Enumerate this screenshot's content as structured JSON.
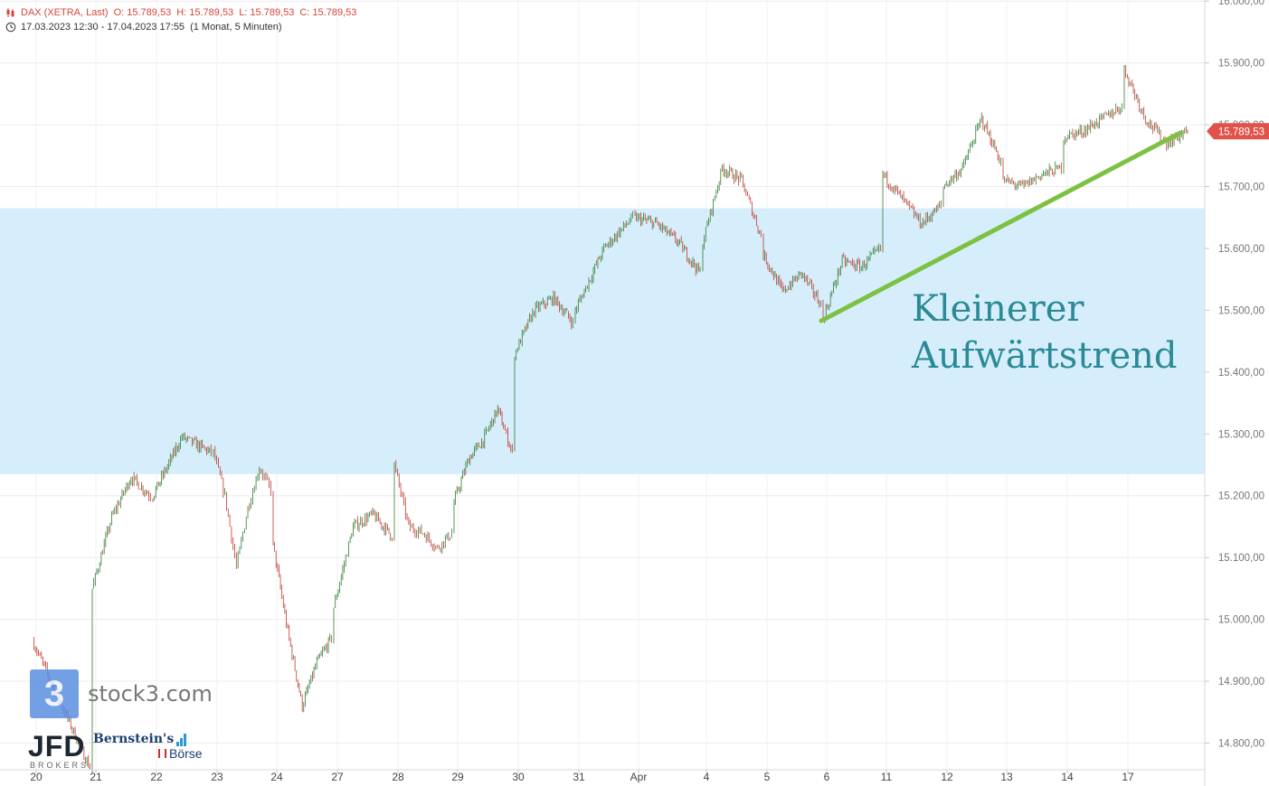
{
  "legend": {
    "symbol": "DAX (XETRA, Last)",
    "open": "O: 15.789,53",
    "high": "H: 15.789,53",
    "low": "L: 15.789,53",
    "close": "C: 15.789,53",
    "range": "17.03.2023 12:30 - 17.04.2023 17:55",
    "interval": "(1 Monat, 5 Minuten)"
  },
  "annotation": {
    "line1": "Kleinerer",
    "line2": "Aufwärtstrend"
  },
  "logos": {
    "stock3": "stock3.com",
    "jfd": "JFD",
    "jfd_sub": "BROKERS",
    "bernstein": "Bernstein's",
    "boerse": "Börse"
  },
  "colors": {
    "up": "#2e7d32",
    "down": "#c0392b",
    "zone": "#d6eefb",
    "trendline": "#7cc242",
    "price_tag": "#e0524a",
    "annotation": "#2a8a95"
  },
  "chart_data": {
    "type": "candlestick",
    "title": "DAX (XETRA, Last)",
    "interval": "5 Minuten",
    "y_axis_ticks": [
      "14.800,00",
      "14.900,00",
      "15.000,00",
      "15.100,00",
      "15.200,00",
      "15.300,00",
      "15.400,00",
      "15.500,00",
      "15.600,00",
      "15.700,00",
      "15.800,00",
      "15.900,00",
      "16.000,00"
    ],
    "ylim": [
      14730,
      16000
    ],
    "x_axis_ticks": [
      "20",
      "21",
      "22",
      "23",
      "24",
      "27",
      "28",
      "29",
      "30",
      "31",
      "Apr",
      "4",
      "5",
      "6",
      "11",
      "12",
      "13",
      "14",
      "17"
    ],
    "last_price": 15789.53,
    "last_price_label": "15.789,53",
    "resistance_zone": [
      15235,
      15665
    ],
    "trendline": {
      "start": {
        "session": "6",
        "value": 15483
      },
      "end": {
        "session": "17",
        "value": 15787
      }
    },
    "session_path": [
      [
        "20",
        14965,
        14760
      ],
      [
        "21",
        15050,
        15165,
        15230,
        15200
      ],
      [
        "22",
        15200,
        15295,
        15270
      ],
      [
        "23",
        15270,
        15200,
        15085,
        15180,
        15245,
        15210
      ],
      [
        "24",
        15120,
        14980,
        14860,
        14930,
        14970
      ],
      [
        "27",
        15020,
        15150,
        15170,
        15135
      ],
      [
        "28",
        15250,
        15150,
        15140,
        15115,
        15140
      ],
      [
        "29",
        15190,
        15260,
        15290,
        15340,
        15270
      ],
      [
        "30",
        15430,
        15500,
        15520,
        15480
      ],
      [
        "31",
        15500,
        15600,
        15650
      ],
      [
        "Apr",
        15650,
        15640,
        15610,
        15560
      ],
      [
        "4",
        15610,
        15730,
        15710,
        15620
      ],
      [
        "5",
        15590,
        15530,
        15560,
        15510
      ],
      [
        "6",
        15485,
        15580,
        15570,
        15600
      ],
      [
        "11",
        15720,
        15680,
        15640,
        15670
      ],
      [
        "12",
        15700,
        15730,
        15810,
        15740
      ],
      [
        "13",
        15710,
        15700,
        15720,
        15730
      ],
      [
        "14",
        15780,
        15790,
        15810,
        15830
      ],
      [
        "17",
        15890,
        15810,
        15770,
        15790
      ]
    ]
  }
}
